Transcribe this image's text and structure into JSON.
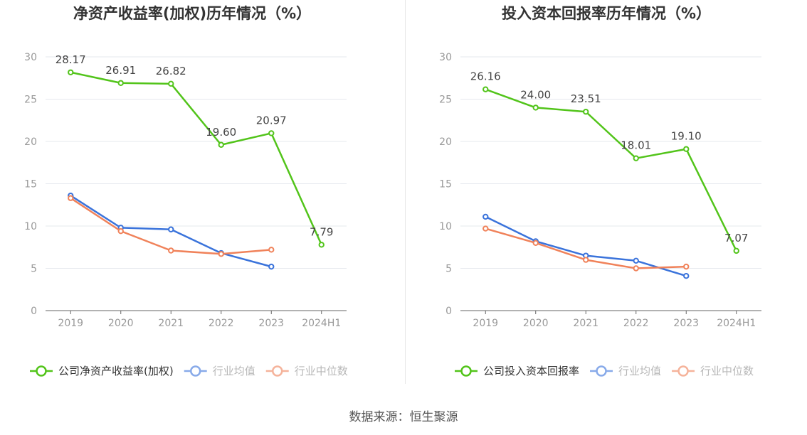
{
  "colors": {
    "company": "#52c41a",
    "avg": "#3a73db",
    "median": "#f0825a",
    "grid": "#e6e8ee",
    "axis": "#666666",
    "tick_text": "#999999",
    "title_text": "#333333"
  },
  "footer": {
    "source": "数据来源：恒生聚源"
  },
  "chart_data": [
    {
      "type": "line",
      "title": "净资产收益率(加权)历年情况（%）",
      "categories": [
        "2019",
        "2020",
        "2021",
        "2022",
        "2023",
        "2024H1"
      ],
      "ylim": [
        0,
        30
      ],
      "yticks": [
        "0",
        "5",
        "10",
        "15",
        "20",
        "25",
        "30"
      ],
      "grid": true,
      "legend_position": "bottom",
      "series": [
        {
          "name": "公司净资产收益率(加权)",
          "color_key": "company",
          "values": [
            28.17,
            26.91,
            26.82,
            19.6,
            20.97,
            7.79
          ],
          "labels": [
            "28.17",
            "26.91",
            "26.82",
            "19.60",
            "20.97",
            "7.79"
          ]
        },
        {
          "name": "行业均值",
          "color_key": "avg",
          "values": [
            13.6,
            9.8,
            9.6,
            6.8,
            5.2,
            null
          ]
        },
        {
          "name": "行业中位数",
          "color_key": "median",
          "values": [
            13.3,
            9.4,
            7.1,
            6.7,
            7.2,
            null
          ]
        }
      ]
    },
    {
      "type": "line",
      "title": "投入资本回报率历年情况（%）",
      "categories": [
        "2019",
        "2020",
        "2021",
        "2022",
        "2023",
        "2024H1"
      ],
      "ylim": [
        0,
        30
      ],
      "yticks": [
        "0",
        "5",
        "10",
        "15",
        "20",
        "25",
        "30"
      ],
      "grid": true,
      "legend_position": "bottom",
      "series": [
        {
          "name": "公司投入资本回报率",
          "color_key": "company",
          "values": [
            26.16,
            24.0,
            23.51,
            18.01,
            19.1,
            7.07
          ],
          "labels": [
            "26.16",
            "24.00",
            "23.51",
            "18.01",
            "19.10",
            "7.07"
          ]
        },
        {
          "name": "行业均值",
          "color_key": "avg",
          "values": [
            11.1,
            8.2,
            6.5,
            5.9,
            4.1,
            null
          ]
        },
        {
          "name": "行业中位数",
          "color_key": "median",
          "values": [
            9.7,
            8.0,
            6.0,
            5.0,
            5.2,
            null
          ]
        }
      ]
    }
  ]
}
